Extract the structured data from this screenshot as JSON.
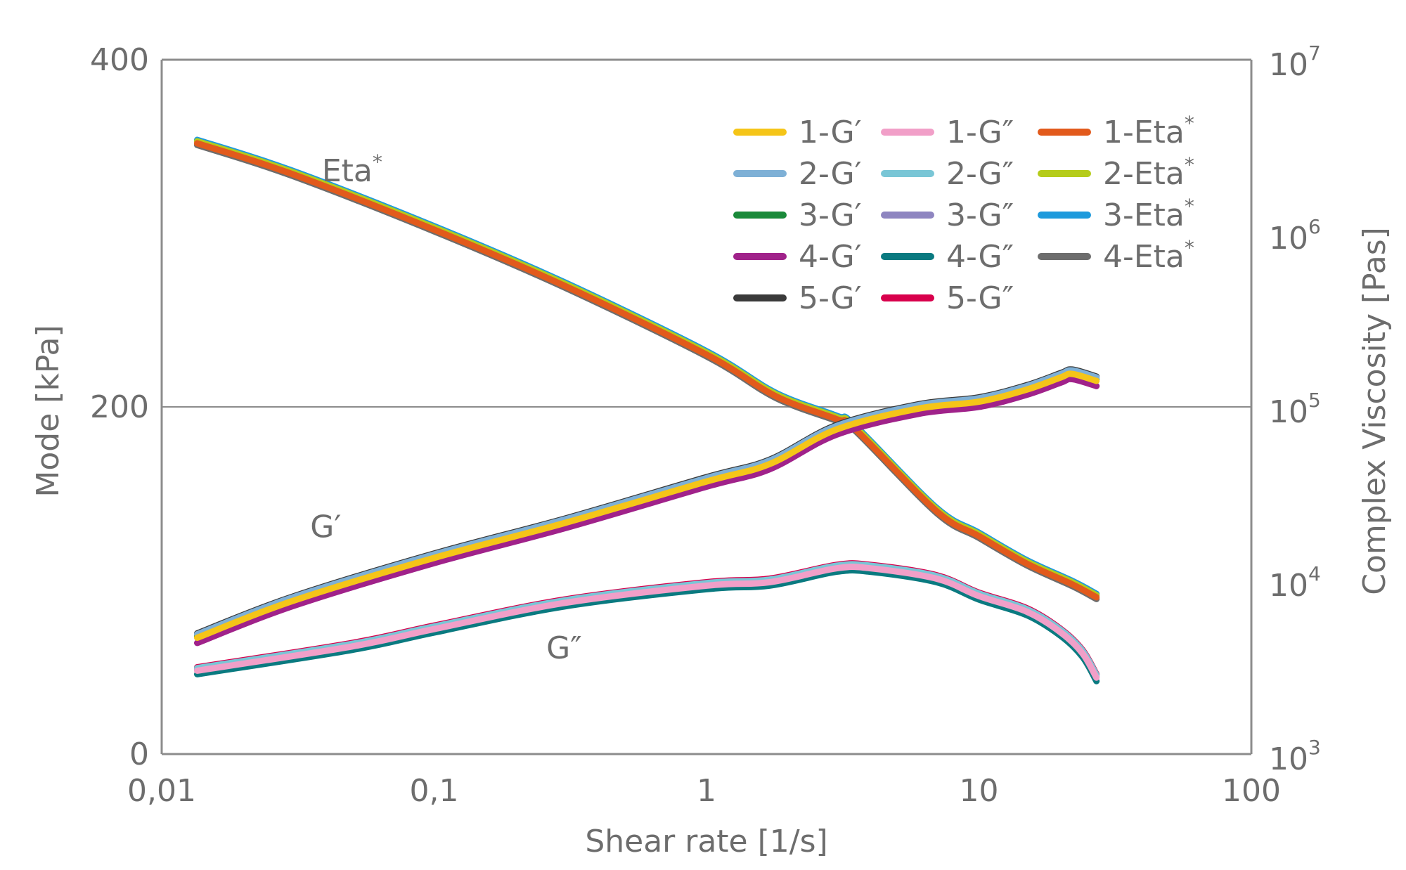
{
  "chart_data": {
    "type": "line",
    "x_scale": "log",
    "xlim": [
      0.01,
      100
    ],
    "xlabel": "Shear rate [1/s]",
    "x_ticks": [
      "0,01",
      "0,1",
      "1",
      "10",
      "100"
    ],
    "ylabel_left": "Mode [kPa]",
    "ylim_left": [
      0,
      400
    ],
    "y_ticks_left": [
      "0",
      "200",
      "400"
    ],
    "ylabel_right": "Complex Viscosity [Pas]",
    "y_scale_right": "log",
    "ylim_right": [
      1000,
      10000000
    ],
    "y_ticks_right": [
      {
        "base": "10",
        "exp": "3"
      },
      {
        "base": "10",
        "exp": "4"
      },
      {
        "base": "10",
        "exp": "5"
      },
      {
        "base": "10",
        "exp": "6"
      },
      {
        "base": "10",
        "exp": "7"
      }
    ],
    "grid": "horizontal line at 200",
    "legend_position": "top-right",
    "annotations": [
      {
        "text": "Eta*",
        "x": 0.05,
        "y_kPa": 330
      },
      {
        "text": "G′",
        "x": 0.04,
        "y_kPa": 125
      },
      {
        "text": "G″",
        "x": 0.3,
        "y_kPa": 55
      }
    ],
    "series": [
      {
        "name": "1-G′",
        "group": "Gp",
        "color": "#f5c518",
        "axis": "left",
        "offset": 0
      },
      {
        "name": "2-G′",
        "group": "Gp",
        "color": "#7eb0d6",
        "axis": "left",
        "offset": 2
      },
      {
        "name": "3-G′",
        "group": "Gp",
        "color": "#1a8a3a",
        "axis": "left",
        "offset": 1
      },
      {
        "name": "4-G′",
        "group": "Gp",
        "color": "#a0228a",
        "axis": "left",
        "offset": -3
      },
      {
        "name": "5-G′",
        "group": "Gp",
        "color": "#3a3a3a",
        "axis": "left",
        "offset": 2.5
      },
      {
        "name": "1-G″",
        "group": "Gpp",
        "color": "#f19fc8",
        "axis": "left",
        "offset": 0
      },
      {
        "name": "2-G″",
        "group": "Gpp",
        "color": "#79c6d6",
        "axis": "left",
        "offset": 1.5
      },
      {
        "name": "3-G″",
        "group": "Gpp",
        "color": "#8e85c0",
        "axis": "left",
        "offset": 0.5
      },
      {
        "name": "4-G″",
        "group": "Gpp",
        "color": "#0a7a80",
        "axis": "left",
        "offset": -2
      },
      {
        "name": "5-G″",
        "group": "Gpp",
        "color": "#d8004c",
        "axis": "left",
        "offset": 2
      },
      {
        "name": "1-Eta*",
        "group": "Eta",
        "color": "#e25a1c",
        "axis": "right",
        "offset": 0
      },
      {
        "name": "2-Eta*",
        "group": "Eta",
        "color": "#b5cc1a",
        "axis": "right",
        "offset": 0.012
      },
      {
        "name": "3-Eta*",
        "group": "Eta",
        "color": "#1e9adc",
        "axis": "right",
        "offset": 0.02
      },
      {
        "name": "4-Eta*",
        "group": "Eta",
        "color": "#6d6d6d",
        "axis": "right",
        "offset": -0.01
      }
    ],
    "curves": {
      "Gp": {
        "x": [
          0.0135,
          0.03,
          0.1,
          0.3,
          1,
          1.7,
          3,
          6,
          10,
          15,
          20,
          22,
          27
        ],
        "y": [
          67,
          88,
          113,
          133,
          157,
          167,
          187,
          199,
          203,
          210,
          217,
          219,
          215
        ]
      },
      "Gpp": {
        "x": [
          0.0135,
          0.05,
          0.1,
          0.3,
          1,
          1.7,
          3,
          4,
          7,
          10,
          15,
          20,
          24,
          27
        ],
        "y": [
          48,
          62,
          72,
          87,
          97,
          99,
          107,
          107,
          101,
          91,
          82,
          70,
          58,
          44
        ]
      },
      "Eta": {
        "x": [
          0.0135,
          0.03,
          0.1,
          0.3,
          1,
          1.8,
          3,
          3.5,
          7,
          10,
          15,
          22,
          27
        ],
        "y": [
          3300000,
          2200000,
          1050000,
          500000,
          200000,
          115000,
          85000,
          75000,
          25000,
          18000,
          12500,
          9500,
          8000
        ]
      }
    },
    "legend_columns": [
      [
        "1-G′",
        "2-G′",
        "3-G′",
        "4-G′",
        "5-G′"
      ],
      [
        "1-G″",
        "2-G″",
        "3-G″",
        "4-G″",
        "5-G″"
      ],
      [
        "1-Eta*",
        "2-Eta*",
        "3-Eta*",
        "4-Eta*"
      ]
    ]
  }
}
